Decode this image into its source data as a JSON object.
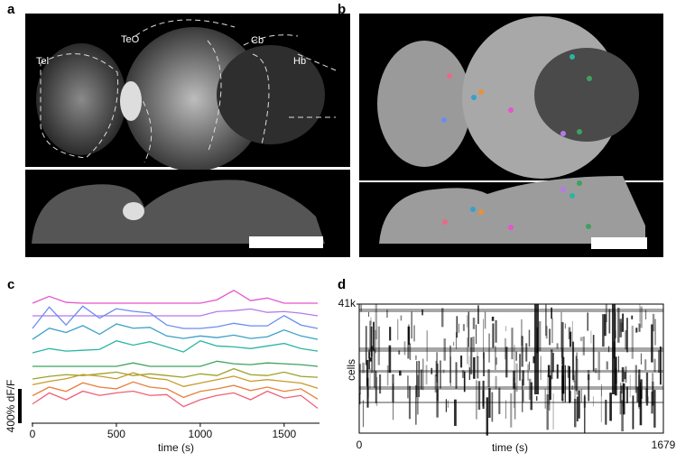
{
  "panels": {
    "a": {
      "label": "a",
      "regions": [
        "Tel",
        "TeO",
        "Cb",
        "Hb"
      ]
    },
    "b": {
      "label": "b"
    }
  },
  "chart_data": [
    {
      "type": "line",
      "label": "c",
      "xlabel": "time (s)",
      "scale_bar_label": "400% dF/F",
      "scale_bar_value": 400,
      "xlim": [
        0,
        1700
      ],
      "xticks": [
        0,
        500,
        1000,
        1500
      ],
      "x": [
        0,
        100,
        200,
        300,
        400,
        500,
        600,
        700,
        800,
        900,
        1000,
        1100,
        1200,
        1300,
        1400,
        1500,
        1600,
        1700
      ],
      "series": [
        {
          "color": "#e356cf",
          "values": [
            0,
            80,
            10,
            0,
            0,
            0,
            0,
            0,
            0,
            0,
            0,
            40,
            150,
            30,
            60,
            0,
            0,
            0
          ]
        },
        {
          "color": "#b57be8",
          "values": [
            0,
            0,
            0,
            0,
            0,
            0,
            0,
            0,
            0,
            0,
            0,
            50,
            60,
            80,
            40,
            50,
            30,
            0
          ]
        },
        {
          "color": "#6b8cf0",
          "values": [
            0,
            250,
            40,
            260,
            120,
            230,
            200,
            180,
            40,
            0,
            0,
            20,
            60,
            30,
            30,
            150,
            40,
            0
          ]
        },
        {
          "color": "#3aa0c8",
          "values": [
            20,
            150,
            100,
            180,
            80,
            200,
            150,
            160,
            60,
            30,
            60,
            40,
            70,
            30,
            50,
            130,
            60,
            20
          ]
        },
        {
          "color": "#2ab5a3",
          "values": [
            10,
            60,
            30,
            40,
            50,
            150,
            100,
            140,
            80,
            20,
            150,
            90,
            80,
            60,
            90,
            120,
            60,
            30
          ]
        },
        {
          "color": "#3fa25e",
          "values": [
            0,
            0,
            0,
            0,
            0,
            0,
            40,
            0,
            0,
            0,
            0,
            60,
            30,
            20,
            40,
            30,
            20,
            0
          ]
        },
        {
          "color": "#9ea12a",
          "values": [
            0,
            30,
            50,
            40,
            60,
            80,
            40,
            60,
            40,
            20,
            60,
            40,
            120,
            50,
            40,
            80,
            30,
            20
          ]
        },
        {
          "color": "#c99a2a",
          "values": [
            80,
            120,
            150,
            200,
            180,
            150,
            220,
            160,
            140,
            60,
            100,
            140,
            180,
            120,
            140,
            120,
            100,
            40
          ]
        },
        {
          "color": "#e8803c",
          "values": [
            100,
            200,
            150,
            250,
            200,
            180,
            260,
            200,
            180,
            80,
            150,
            180,
            220,
            160,
            200,
            150,
            180,
            60
          ]
        },
        {
          "color": "#f0607a",
          "values": [
            150,
            280,
            200,
            300,
            250,
            280,
            300,
            250,
            260,
            120,
            200,
            250,
            280,
            200,
            300,
            220,
            250,
            100
          ]
        }
      ]
    },
    {
      "type": "heatmap",
      "label": "d",
      "xlabel": "time (s)",
      "ylabel": "cells",
      "xlim": [
        0,
        1679
      ],
      "xticks": [
        0,
        1679
      ],
      "ylim": [
        0,
        41000
      ],
      "yticks": [
        {
          "value": 41000,
          "label": "41k"
        }
      ]
    }
  ]
}
